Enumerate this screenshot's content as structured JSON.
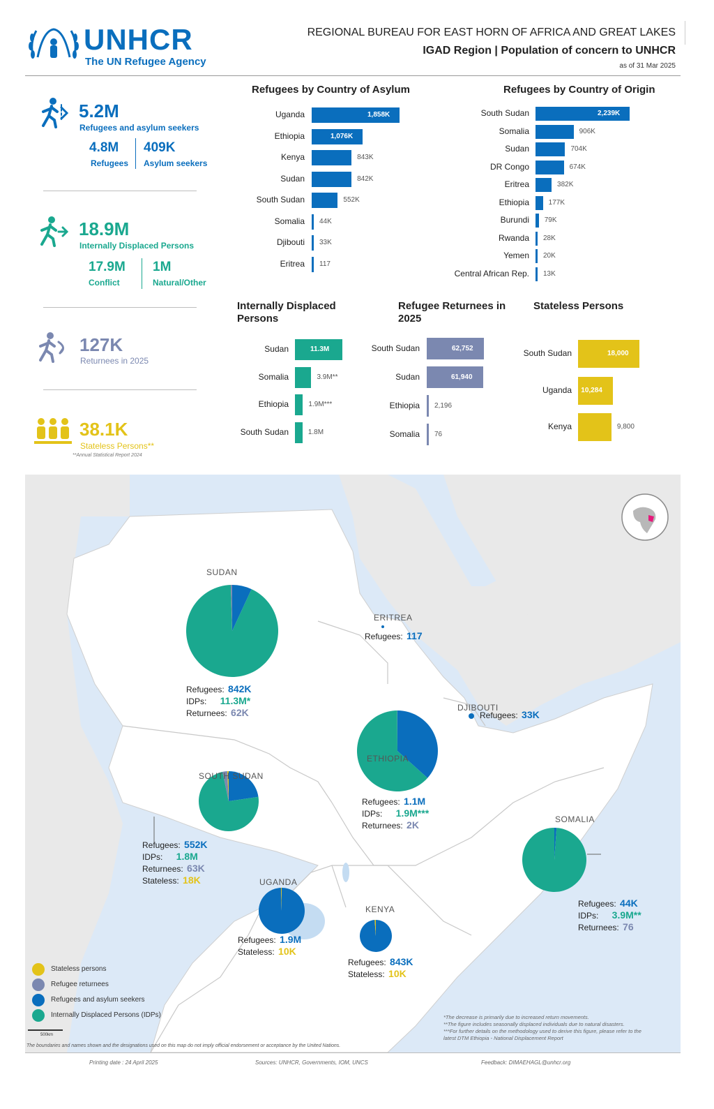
{
  "header": {
    "logo_text": "UNHCR",
    "logo_sub": "The UN Refugee Agency",
    "title": "REGIONAL BUREAU FOR EAST HORN OF AFRICA AND GREAT LAKES",
    "subtitle": "IGAD Region | Population of concern to UNHCR",
    "date": "as of 31 Mar 2025"
  },
  "kpis": {
    "refugees_total": "5.2M",
    "refugees_total_label": "Refugees and asylum seekers",
    "refugees": "4.8M",
    "refugees_label": "Refugees",
    "asylum": "409K",
    "asylum_label": "Asylum seekers",
    "idp_total": "18.9M",
    "idp_total_label": "Internally Displaced Persons",
    "idp_conflict": "17.9M",
    "idp_conflict_label": "Conflict",
    "idp_natural": "1M",
    "idp_natural_label": "Natural/Other",
    "returnees": "127K",
    "returnees_label": "Returnees in 2025",
    "stateless": "38.1K",
    "stateless_label": "Stateless Persons**",
    "stateless_note": "**Annual Statistical Report 2024"
  },
  "colors": {
    "blue": "#0a6ebd",
    "teal": "#1aa88f",
    "grey": "#7b88b0",
    "yellow": "#e3c319",
    "sea": "#dce9f7",
    "land_outside": "#e9e9e9"
  },
  "chart_data": [
    {
      "type": "bar",
      "title": "Refugees by Country of Asylum",
      "categories": [
        "Uganda",
        "Ethiopia",
        "Kenya",
        "Sudan",
        "South Sudan",
        "Somalia",
        "Djibouti",
        "Eritrea"
      ],
      "values": [
        1858000,
        1076000,
        843000,
        842000,
        552000,
        44000,
        33000,
        117
      ],
      "labels": [
        "1,858K",
        "1,076K",
        "843K",
        "842K",
        "552K",
        "44K",
        "33K",
        "117"
      ],
      "color": "#0a6ebd"
    },
    {
      "type": "bar",
      "title": "Refugees by Country of Origin",
      "categories": [
        "South Sudan",
        "Somalia",
        "Sudan",
        "DR Congo",
        "Eritrea",
        "Ethiopia",
        "Burundi",
        "Rwanda",
        "Yemen",
        "Central African Rep."
      ],
      "values": [
        2239000,
        906000,
        704000,
        674000,
        382000,
        177000,
        79000,
        28000,
        20000,
        13000
      ],
      "labels": [
        "2,239K",
        "906K",
        "704K",
        "674K",
        "382K",
        "177K",
        "79K",
        "28K",
        "20K",
        "13K"
      ],
      "color": "#0a6ebd"
    },
    {
      "type": "bar",
      "title": "Internally Displaced Persons",
      "categories": [
        "Sudan",
        "Somalia",
        "Ethiopia",
        "South Sudan"
      ],
      "values": [
        11300000,
        3900000,
        1900000,
        1800000
      ],
      "labels": [
        "11.3M",
        "3.9M**",
        "1.9M***",
        "1.8M"
      ],
      "color": "#1aa88f"
    },
    {
      "type": "bar",
      "title": "Refugee Returnees in 2025",
      "categories": [
        "South Sudan",
        "Sudan",
        "Ethiopia",
        "Somalia"
      ],
      "values": [
        62752,
        61940,
        2196,
        76
      ],
      "labels": [
        "62,752",
        "61,940",
        "2,196",
        "76"
      ],
      "color": "#7b88b0"
    },
    {
      "type": "bar",
      "title": "Stateless Persons",
      "categories": [
        "South Sudan",
        "Uganda",
        "Kenya"
      ],
      "values": [
        18000,
        10284,
        9800
      ],
      "labels": [
        "18,000",
        "10,284",
        "9,800"
      ],
      "color": "#e3c319"
    }
  ],
  "map": {
    "countries": [
      {
        "name": "SUDAN",
        "stats": [
          [
            "Refugees:",
            "842K",
            "blue"
          ],
          [
            "IDPs:",
            "11.3M*",
            "teal"
          ],
          [
            "Returnees:",
            "62K",
            "grey"
          ]
        ],
        "pie": [
          {
            "v": 842000,
            "c": "#0a6ebd"
          },
          {
            "v": 11300000,
            "c": "#1aa88f"
          },
          {
            "v": 62000,
            "c": "#7b88b0"
          }
        ]
      },
      {
        "name": "ERITREA",
        "stats": [
          [
            "Refugees:",
            "117",
            "blue"
          ]
        ],
        "pie": []
      },
      {
        "name": "DJIBOUTI",
        "stats": [
          [
            "Refugees:",
            "33K",
            "blue"
          ]
        ],
        "pie": []
      },
      {
        "name": "ETHIOPIA",
        "stats": [
          [
            "Refugees:",
            "1.1M",
            "blue"
          ],
          [
            "IDPs:",
            "1.9M***",
            "teal"
          ],
          [
            "Returnees:",
            "2K",
            "grey"
          ]
        ],
        "pie": [
          {
            "v": 1100000,
            "c": "#0a6ebd"
          },
          {
            "v": 1900000,
            "c": "#1aa88f"
          },
          {
            "v": 2000,
            "c": "#7b88b0"
          }
        ]
      },
      {
        "name": "SOUTH SUDAN",
        "stats": [
          [
            "Refugees:",
            "552K",
            "blue"
          ],
          [
            "IDPs:",
            "1.8M",
            "teal"
          ],
          [
            "Returnees:",
            "63K",
            "grey"
          ],
          [
            "Stateless:",
            "18K",
            "yellow"
          ]
        ],
        "pie": [
          {
            "v": 552000,
            "c": "#0a6ebd"
          },
          {
            "v": 1800000,
            "c": "#1aa88f"
          },
          {
            "v": 63000,
            "c": "#7b88b0"
          },
          {
            "v": 18000,
            "c": "#e3c319"
          }
        ]
      },
      {
        "name": "SOMALIA",
        "stats": [
          [
            "Refugees:",
            "44K",
            "blue"
          ],
          [
            "IDPs:",
            "3.9M**",
            "teal"
          ],
          [
            "Returnees:",
            "76",
            "grey"
          ]
        ],
        "pie": [
          {
            "v": 44000,
            "c": "#0a6ebd"
          },
          {
            "v": 3900000,
            "c": "#1aa88f"
          },
          {
            "v": 76,
            "c": "#7b88b0"
          }
        ]
      },
      {
        "name": "UGANDA",
        "stats": [
          [
            "Refugees:",
            "1.9M",
            "blue"
          ],
          [
            "Stateless:",
            "10K",
            "yellow"
          ]
        ],
        "pie": [
          {
            "v": 1900000,
            "c": "#0a6ebd"
          },
          {
            "v": 10000,
            "c": "#e3c319"
          }
        ]
      },
      {
        "name": "KENYA",
        "stats": [
          [
            "Refugees:",
            "843K",
            "blue"
          ],
          [
            "Stateless:",
            "10K",
            "yellow"
          ]
        ],
        "pie": [
          {
            "v": 843000,
            "c": "#0a6ebd"
          },
          {
            "v": 10000,
            "c": "#e3c319"
          }
        ]
      }
    ],
    "legend": [
      {
        "label": "Stateless persons",
        "color": "#e3c319"
      },
      {
        "label": "Refugee returnees",
        "color": "#7b88b0"
      },
      {
        "label": "Refugees and asylum seekers",
        "color": "#0a6ebd"
      },
      {
        "label": "Internally Displaced Persons (IDPs)",
        "color": "#1aa88f"
      }
    ],
    "scale": "500km",
    "notes": [
      "*The decrease is primarily due to increased return movements.",
      "**The figure includes seasonally displaced individuals due to natural disasters.",
      "***For further details on the methodology used to derive this figure, please refer to the",
      "latest DTM Ethiopia - National Displacement Report"
    ],
    "disclaimer": "The boundaries and names shown and the designations used on this map do not imply official endorsement or acceptance by the United Nations."
  },
  "footer": {
    "printing": "Printing date : 24 April 2025",
    "sources": "Sources: UNHCR, Governments, IOM, UNCS",
    "feedback": "Feedback: DIMAEHAGL@unhcr.org"
  }
}
